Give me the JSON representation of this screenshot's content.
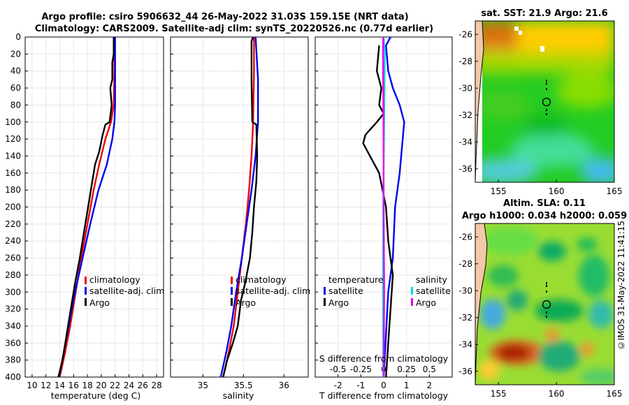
{
  "header": {
    "title_line1": "Argo profile: csiro 5906632_44 26-May-2022 31.03S 159.15E (NRT data)",
    "title_line2": "Climatology: CARS2009. Satellite-adj clim: synTS_20220526.nc (0.77d earlier)"
  },
  "depth_ticks": [
    0,
    20,
    40,
    60,
    80,
    100,
    120,
    140,
    160,
    180,
    200,
    220,
    240,
    260,
    280,
    300,
    320,
    340,
    360,
    380,
    400
  ],
  "colors": {
    "red": "#ee0000",
    "blue": "#0000ee",
    "black": "#000000",
    "cyan": "#00dddd",
    "magenta": "#ee00ee"
  },
  "chart_data": [
    {
      "type": "line",
      "panel": "temperature",
      "xlabel": "temperature (deg C)",
      "xlim": [
        9,
        29
      ],
      "ylim": [
        400,
        0
      ],
      "xticks": [
        10,
        12,
        14,
        16,
        18,
        20,
        22,
        24,
        26,
        28
      ],
      "legend": [
        "climatology",
        "satellite-adj. clim",
        "Argo"
      ],
      "series": [
        {
          "name": "climatology",
          "color": "#ee0000",
          "points": [
            [
              21.9,
              0
            ],
            [
              21.9,
              40
            ],
            [
              21.8,
              80
            ],
            [
              21.4,
              100
            ],
            [
              20.6,
              120
            ],
            [
              19.7,
              150
            ],
            [
              18.9,
              180
            ],
            [
              18.0,
              220
            ],
            [
              17.1,
              260
            ],
            [
              16.3,
              300
            ],
            [
              15.5,
              340
            ],
            [
              14.8,
              370
            ],
            [
              14.0,
              400
            ]
          ]
        },
        {
          "name": "satellite-adj. clim",
          "color": "#0000ee",
          "points": [
            [
              22.0,
              0
            ],
            [
              22.0,
              40
            ],
            [
              22.0,
              80
            ],
            [
              21.9,
              100
            ],
            [
              21.6,
              120
            ],
            [
              20.8,
              150
            ],
            [
              19.6,
              180
            ],
            [
              18.4,
              220
            ],
            [
              17.3,
              260
            ],
            [
              16.2,
              300
            ],
            [
              15.3,
              340
            ],
            [
              14.6,
              370
            ],
            [
              13.9,
              400
            ]
          ]
        },
        {
          "name": "Argo",
          "color": "#000000",
          "points": [
            [
              21.8,
              0
            ],
            [
              21.8,
              20
            ],
            [
              21.6,
              30
            ],
            [
              21.6,
              50
            ],
            [
              21.3,
              60
            ],
            [
              21.5,
              80
            ],
            [
              21.2,
              100
            ],
            [
              20.6,
              103
            ],
            [
              20.2,
              115
            ],
            [
              19.7,
              135
            ],
            [
              19.1,
              150
            ],
            [
              18.7,
              170
            ],
            [
              18.1,
              200
            ],
            [
              17.5,
              230
            ],
            [
              16.9,
              260
            ],
            [
              16.2,
              290
            ],
            [
              15.6,
              320
            ],
            [
              15.0,
              350
            ],
            [
              14.4,
              380
            ],
            [
              13.8,
              400
            ]
          ]
        }
      ]
    },
    {
      "type": "line",
      "panel": "salinity",
      "xlabel": "salinity",
      "xlim": [
        34.6,
        36.3
      ],
      "ylim": [
        400,
        0
      ],
      "xticks": [
        35,
        35.5,
        36
      ],
      "tick_labels": [
        "35",
        "35.5",
        "36"
      ],
      "legend": [
        "climatology",
        "satellite-adj. clim",
        "Argo"
      ],
      "series": [
        {
          "name": "climatology",
          "color": "#ee0000",
          "points": [
            [
              35.63,
              0
            ],
            [
              35.63,
              40
            ],
            [
              35.62,
              100
            ],
            [
              35.6,
              140
            ],
            [
              35.57,
              180
            ],
            [
              35.53,
              220
            ],
            [
              35.48,
              260
            ],
            [
              35.43,
              300
            ],
            [
              35.38,
              340
            ],
            [
              35.32,
              370
            ],
            [
              35.25,
              400
            ]
          ]
        },
        {
          "name": "satellite-adj. clim",
          "color": "#0000ee",
          "points": [
            [
              35.65,
              0
            ],
            [
              35.68,
              50
            ],
            [
              35.68,
              100
            ],
            [
              35.65,
              140
            ],
            [
              35.6,
              180
            ],
            [
              35.54,
              220
            ],
            [
              35.48,
              260
            ],
            [
              35.41,
              300
            ],
            [
              35.35,
              340
            ],
            [
              35.29,
              370
            ],
            [
              35.22,
              400
            ]
          ]
        },
        {
          "name": "Argo",
          "color": "#000000",
          "points": [
            [
              35.62,
              0
            ],
            [
              35.6,
              5
            ],
            [
              35.6,
              50
            ],
            [
              35.61,
              100
            ],
            [
              35.66,
              103
            ],
            [
              35.67,
              140
            ],
            [
              35.66,
              170
            ],
            [
              35.63,
              200
            ],
            [
              35.61,
              230
            ],
            [
              35.58,
              260
            ],
            [
              35.52,
              290
            ],
            [
              35.47,
              310
            ],
            [
              35.43,
              340
            ],
            [
              35.37,
              360
            ],
            [
              35.3,
              380
            ],
            [
              35.25,
              400
            ]
          ]
        }
      ]
    },
    {
      "type": "line",
      "panel": "difference",
      "xlabel": "T difference from climatology",
      "top_axis_label": "S difference from climatology",
      "xlim": [
        -3,
        3
      ],
      "ylim": [
        400,
        0
      ],
      "xticks": [
        -2,
        -1,
        0,
        1,
        2
      ],
      "top_ticks": [
        -0.5,
        -0.25,
        0,
        0.25,
        0.5
      ],
      "top_tick_labels": [
        "-0.5",
        "-0.25",
        "0",
        "0.25",
        "0.5"
      ],
      "legend_left_title": "temperature",
      "legend_right_title": "salinity",
      "legend_left": [
        "satellite",
        "Argo"
      ],
      "legend_right": [
        "satellite",
        "Argo"
      ],
      "series": [
        {
          "name": "temperature satellite",
          "color": "#0000ee",
          "points": [
            [
              0.3,
              0
            ],
            [
              0.1,
              10
            ],
            [
              0.2,
              40
            ],
            [
              0.4,
              60
            ],
            [
              0.7,
              80
            ],
            [
              0.9,
              100
            ],
            [
              0.8,
              130
            ],
            [
              0.7,
              160
            ],
            [
              0.5,
              200
            ],
            [
              0.4,
              260
            ],
            [
              0.2,
              300
            ],
            [
              0.1,
              350
            ],
            [
              0.0,
              400
            ]
          ]
        },
        {
          "name": "temperature Argo",
          "color": "#000000",
          "points": [
            [
              -0.2,
              10
            ],
            [
              -0.3,
              40
            ],
            [
              -0.1,
              60
            ],
            [
              -0.2,
              80
            ],
            [
              0.0,
              90
            ],
            [
              -0.3,
              100
            ],
            [
              -0.8,
              115
            ],
            [
              -0.9,
              125
            ],
            [
              -0.6,
              140
            ],
            [
              -0.2,
              160
            ],
            [
              0.1,
              200
            ],
            [
              0.2,
              240
            ],
            [
              0.4,
              280
            ],
            [
              0.3,
              320
            ],
            [
              0.2,
              360
            ],
            [
              0.1,
              400
            ]
          ]
        },
        {
          "name": "salinity satellite",
          "color": "#00dddd",
          "points": [
            [
              0.0,
              0
            ],
            [
              0.05,
              20
            ],
            [
              0.02,
              100
            ],
            [
              -0.02,
              200
            ],
            [
              -0.03,
              300
            ],
            [
              -0.02,
              400
            ]
          ]
        },
        {
          "name": "salinity Argo",
          "color": "#ee00ee",
          "points": [
            [
              -0.02,
              0
            ],
            [
              -0.03,
              20
            ],
            [
              -0.01,
              100
            ],
            [
              0.0,
              200
            ],
            [
              0.02,
              300
            ],
            [
              0.0,
              400
            ]
          ]
        }
      ]
    },
    {
      "type": "heatmap",
      "panel": "sst-map",
      "title": "sat. SST: 21.9 Argo: 21.6",
      "xlim": [
        153,
        165
      ],
      "ylim": [
        -37,
        -25
      ],
      "xticks": [
        155,
        160,
        165
      ],
      "yticks": [
        -26,
        -28,
        -30,
        -32,
        -34,
        -36
      ],
      "marker": {
        "lon": 159.15,
        "lat": -31.03
      }
    },
    {
      "type": "heatmap",
      "panel": "sla-map",
      "title_line1": "Altim. SLA: 0.11",
      "title_line2": "Argo h1000: 0.034 h2000: 0.059",
      "xlim": [
        153,
        165
      ],
      "ylim": [
        -37,
        -25
      ],
      "xticks": [
        155,
        160,
        165
      ],
      "yticks": [
        -26,
        -28,
        -30,
        -32,
        -34,
        -36
      ],
      "marker": {
        "lon": 159.15,
        "lat": -31.03
      }
    }
  ],
  "credit": "©IMOS 31-May-2022 11:41:15"
}
